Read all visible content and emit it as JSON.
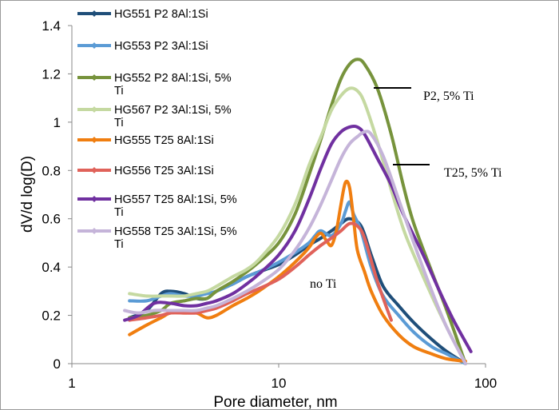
{
  "chart_data": {
    "type": "line",
    "x_scale": "log",
    "xlabel": "Pore diameter, nm",
    "ylabel": "dV/d log(D)",
    "xlim": [
      1,
      100
    ],
    "ylim": [
      0,
      1.4
    ],
    "x_ticks": [
      1,
      10,
      100
    ],
    "x_tick_labels": [
      "1",
      "10",
      "100"
    ],
    "y_ticks": [
      0,
      0.2,
      0.4,
      0.6,
      0.8,
      1,
      1.2,
      1.4
    ],
    "y_tick_labels": [
      "0",
      "0.2",
      "0.4",
      "0.6",
      "0.8",
      "1",
      "1.2",
      "1.4"
    ],
    "grid": false,
    "legend_position": "top-left",
    "series": [
      {
        "name": "HG551 P2 8Al:1Si",
        "color": "#1f4e79",
        "x": [
          1.9,
          2.3,
          2.7,
          3.0,
          3.5,
          4.0,
          4.5,
          5.0,
          6.0,
          7.0,
          8.0,
          10,
          12,
          14,
          16,
          18,
          20,
          22,
          25,
          28,
          32,
          38,
          45,
          55,
          65,
          80
        ],
        "y": [
          0.19,
          0.22,
          0.29,
          0.3,
          0.29,
          0.27,
          0.27,
          0.3,
          0.33,
          0.36,
          0.38,
          0.41,
          0.45,
          0.49,
          0.52,
          0.55,
          0.58,
          0.6,
          0.57,
          0.45,
          0.32,
          0.24,
          0.17,
          0.1,
          0.05,
          0.0
        ]
      },
      {
        "name": "HG553 P2 3Al:1Si",
        "color": "#5b9bd5",
        "x": [
          1.9,
          2.3,
          2.7,
          3.0,
          3.5,
          4.0,
          4.5,
          5.0,
          6.0,
          7.0,
          8.0,
          10,
          12,
          14,
          15,
          16,
          18,
          20,
          21,
          22,
          23,
          25,
          28,
          32,
          38,
          45,
          55,
          65,
          80
        ],
        "y": [
          0.26,
          0.26,
          0.28,
          0.29,
          0.28,
          0.28,
          0.29,
          0.3,
          0.33,
          0.36,
          0.38,
          0.42,
          0.46,
          0.5,
          0.53,
          0.55,
          0.53,
          0.58,
          0.63,
          0.67,
          0.62,
          0.55,
          0.4,
          0.28,
          0.2,
          0.13,
          0.07,
          0.04,
          0.0
        ]
      },
      {
        "name": "HG552 P2 8Al:1Si, 5% Ti",
        "color": "#77933c",
        "x": [
          1.9,
          2.3,
          2.7,
          3.0,
          3.5,
          4.0,
          4.5,
          5.0,
          6.0,
          7.0,
          8.0,
          10,
          12,
          14,
          16,
          18,
          20,
          22,
          24,
          26,
          30,
          35,
          40,
          45,
          55,
          65,
          80
        ],
        "y": [
          0.19,
          0.2,
          0.22,
          0.25,
          0.26,
          0.27,
          0.27,
          0.3,
          0.34,
          0.38,
          0.42,
          0.5,
          0.62,
          0.78,
          0.93,
          1.07,
          1.18,
          1.24,
          1.26,
          1.24,
          1.14,
          0.95,
          0.74,
          0.58,
          0.38,
          0.22,
          0.0
        ]
      },
      {
        "name": "HG567 P2 3Al:1Si, 5% Ti",
        "color": "#c5d9a1",
        "x": [
          1.9,
          2.3,
          2.7,
          3.0,
          3.5,
          4.0,
          4.5,
          5.0,
          6.0,
          7.0,
          8.0,
          10,
          12,
          14,
          16,
          18,
          20,
          22,
          24,
          26,
          30,
          35,
          40,
          45,
          55,
          65,
          80
        ],
        "y": [
          0.29,
          0.28,
          0.28,
          0.28,
          0.28,
          0.29,
          0.3,
          0.32,
          0.36,
          0.39,
          0.43,
          0.53,
          0.66,
          0.82,
          0.94,
          1.05,
          1.11,
          1.14,
          1.13,
          1.08,
          0.92,
          0.72,
          0.56,
          0.45,
          0.28,
          0.15,
          0.0
        ]
      },
      {
        "name": "HG555 T25 8Al:1Si",
        "color": "#f07e10",
        "x": [
          1.9,
          2.3,
          2.7,
          3.0,
          3.5,
          4.0,
          4.5,
          5.0,
          6.0,
          7.0,
          8.0,
          10,
          12,
          14,
          15,
          16,
          17,
          18,
          19,
          20,
          21,
          22,
          23,
          24,
          26,
          28,
          32,
          38,
          45,
          55,
          65,
          80
        ],
        "y": [
          0.12,
          0.16,
          0.19,
          0.21,
          0.21,
          0.21,
          0.19,
          0.2,
          0.24,
          0.27,
          0.3,
          0.36,
          0.42,
          0.48,
          0.52,
          0.54,
          0.51,
          0.49,
          0.55,
          0.66,
          0.75,
          0.73,
          0.6,
          0.47,
          0.38,
          0.3,
          0.2,
          0.12,
          0.07,
          0.04,
          0.02,
          0.01
        ]
      },
      {
        "name": "HG556 T25 3Al:1Si",
        "color": "#e0625a",
        "x": [
          1.9,
          2.3,
          2.7,
          3.0,
          3.5,
          4.0,
          4.5,
          5.0,
          6.0,
          7.0,
          8.0,
          10,
          12,
          14,
          16,
          18,
          20,
          22,
          24,
          26,
          30,
          35
        ],
        "y": [
          0.18,
          0.19,
          0.2,
          0.21,
          0.21,
          0.21,
          0.22,
          0.23,
          0.26,
          0.29,
          0.31,
          0.35,
          0.4,
          0.45,
          0.49,
          0.52,
          0.55,
          0.58,
          0.57,
          0.52,
          0.34,
          0.18
        ]
      },
      {
        "name": "HG557 T25 8Al:1Si, 5% Ti",
        "color": "#7030a0",
        "x": [
          1.8,
          2.1,
          2.5,
          3.0,
          3.5,
          4.0,
          4.5,
          5.0,
          6.0,
          7.0,
          8.0,
          10,
          12,
          14,
          16,
          18,
          20,
          22,
          24,
          26,
          30,
          35,
          40,
          50,
          60,
          70,
          85
        ],
        "y": [
          0.18,
          0.2,
          0.25,
          0.25,
          0.24,
          0.24,
          0.25,
          0.26,
          0.29,
          0.33,
          0.37,
          0.45,
          0.55,
          0.68,
          0.81,
          0.91,
          0.96,
          0.98,
          0.98,
          0.95,
          0.85,
          0.74,
          0.62,
          0.45,
          0.3,
          0.18,
          0.05
        ]
      },
      {
        "name": "HG558 T25 3Al:1Si, 5% Ti",
        "color": "#c5b4d9",
        "x": [
          1.8,
          2.1,
          2.5,
          3.0,
          3.5,
          4.0,
          4.5,
          5.0,
          6.0,
          7.0,
          8.0,
          10,
          12,
          14,
          16,
          18,
          20,
          22,
          24,
          26,
          28,
          32,
          38,
          45,
          55,
          65,
          80
        ],
        "y": [
          0.22,
          0.21,
          0.22,
          0.22,
          0.22,
          0.22,
          0.23,
          0.24,
          0.27,
          0.3,
          0.33,
          0.39,
          0.47,
          0.56,
          0.66,
          0.76,
          0.85,
          0.91,
          0.94,
          0.96,
          0.95,
          0.86,
          0.68,
          0.5,
          0.3,
          0.15,
          0.0
        ]
      }
    ],
    "annotations": [
      {
        "text": "P2, 5% Ti"
      },
      {
        "text": "T25, 5% Ti"
      },
      {
        "text": "no Ti"
      }
    ]
  }
}
